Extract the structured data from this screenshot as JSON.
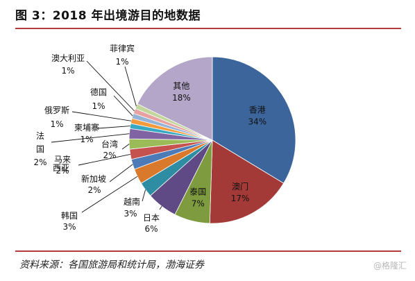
{
  "figure": {
    "title": "图 3：2018 年出境游目的地数据",
    "source": "资料来源：各国旅游局和统计局，渤海证券",
    "watermark": "@格隆汇"
  },
  "chart_data": {
    "type": "pie",
    "title": "",
    "slices": [
      {
        "name": "香港",
        "value": 34,
        "label": "34%",
        "color": "#3c659b"
      },
      {
        "name": "澳门",
        "value": 17,
        "label": "17%",
        "color": "#a33a37"
      },
      {
        "name": "泰国",
        "value": 7,
        "label": "7%",
        "color": "#7e9b3f"
      },
      {
        "name": "日本",
        "value": 6,
        "label": "6%",
        "color": "#5f4a86"
      },
      {
        "name": "越南",
        "value": 3,
        "label": "3%",
        "color": "#2e8da3"
      },
      {
        "name": "韩国",
        "value": 3,
        "label": "3%",
        "color": "#d9792b"
      },
      {
        "name": "新加坡",
        "value": 2,
        "label": "2%",
        "color": "#4d7bb8"
      },
      {
        "name": "马来西亚",
        "value": 2,
        "label": "2%",
        "color": "#c6524f"
      },
      {
        "name": "台湾",
        "value": 2,
        "label": "2%",
        "color": "#9bbb59"
      },
      {
        "name": "法国",
        "value": 2,
        "label": "2%",
        "color": "#7f63a2"
      },
      {
        "name": "柬埔寨",
        "value": 1,
        "label": "1%",
        "color": "#37a8c4"
      },
      {
        "name": "俄罗斯",
        "value": 1,
        "label": "1%",
        "color": "#f39a3c"
      },
      {
        "name": "德国",
        "value": 1,
        "label": "1%",
        "color": "#95b3d7"
      },
      {
        "name": "澳大利亚",
        "value": 1,
        "label": "1%",
        "color": "#e6a1a0"
      },
      {
        "name": "菲律宾",
        "value": 1,
        "label": "1%",
        "color": "#c3d69b"
      },
      {
        "name": "其他",
        "value": 18,
        "label": "18%",
        "color": "#b3a6c9"
      }
    ]
  }
}
